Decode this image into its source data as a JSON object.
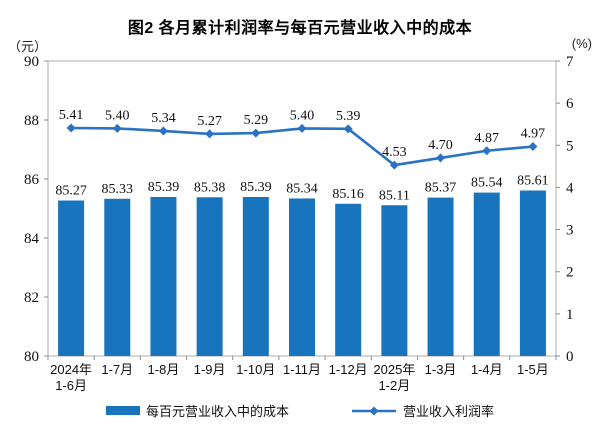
{
  "title": "图2  各月累计利润率与每百元营业收入中的成本",
  "axes": {
    "left_unit": "（元）",
    "right_unit": "(%)"
  },
  "chart_data": {
    "type": "bar",
    "combo": "bar+line dual-axis",
    "title": "图2  各月累计利润率与每百元营业收入中的成本",
    "categories": [
      "2024年\n1-6月",
      "1-7月",
      "1-8月",
      "1-9月",
      "1-10月",
      "1-11月",
      "1-12月",
      "2025年\n1-2月",
      "1-3月",
      "1-4月",
      "1-5月"
    ],
    "series": [
      {
        "name": "每百元营业收入中的成本",
        "type": "bar",
        "axis": "left",
        "color": "#1874BC",
        "values": [
          85.27,
          85.33,
          85.39,
          85.38,
          85.39,
          85.34,
          85.16,
          85.11,
          85.37,
          85.54,
          85.61
        ]
      },
      {
        "name": "营业收入利润率",
        "type": "line",
        "axis": "right",
        "color": "#2A72C4",
        "values": [
          5.41,
          5.4,
          5.34,
          5.27,
          5.29,
          5.4,
          5.39,
          4.53,
          4.7,
          4.87,
          4.97
        ]
      }
    ],
    "left_axis": {
      "unit": "（元）",
      "min": 80,
      "max": 90,
      "ticks": [
        90,
        88,
        86,
        84,
        82,
        80
      ]
    },
    "right_axis": {
      "unit": "(%)",
      "min": 0,
      "max": 7,
      "ticks": [
        7,
        6,
        5,
        4,
        3,
        2,
        1,
        0
      ]
    },
    "grid": false,
    "legend_position": "bottom"
  },
  "colors": {
    "bar": "#1874BC",
    "line": "#2A72C4",
    "border": "#ADADAD",
    "tick": "#8C8C8C",
    "text": "#111111"
  }
}
